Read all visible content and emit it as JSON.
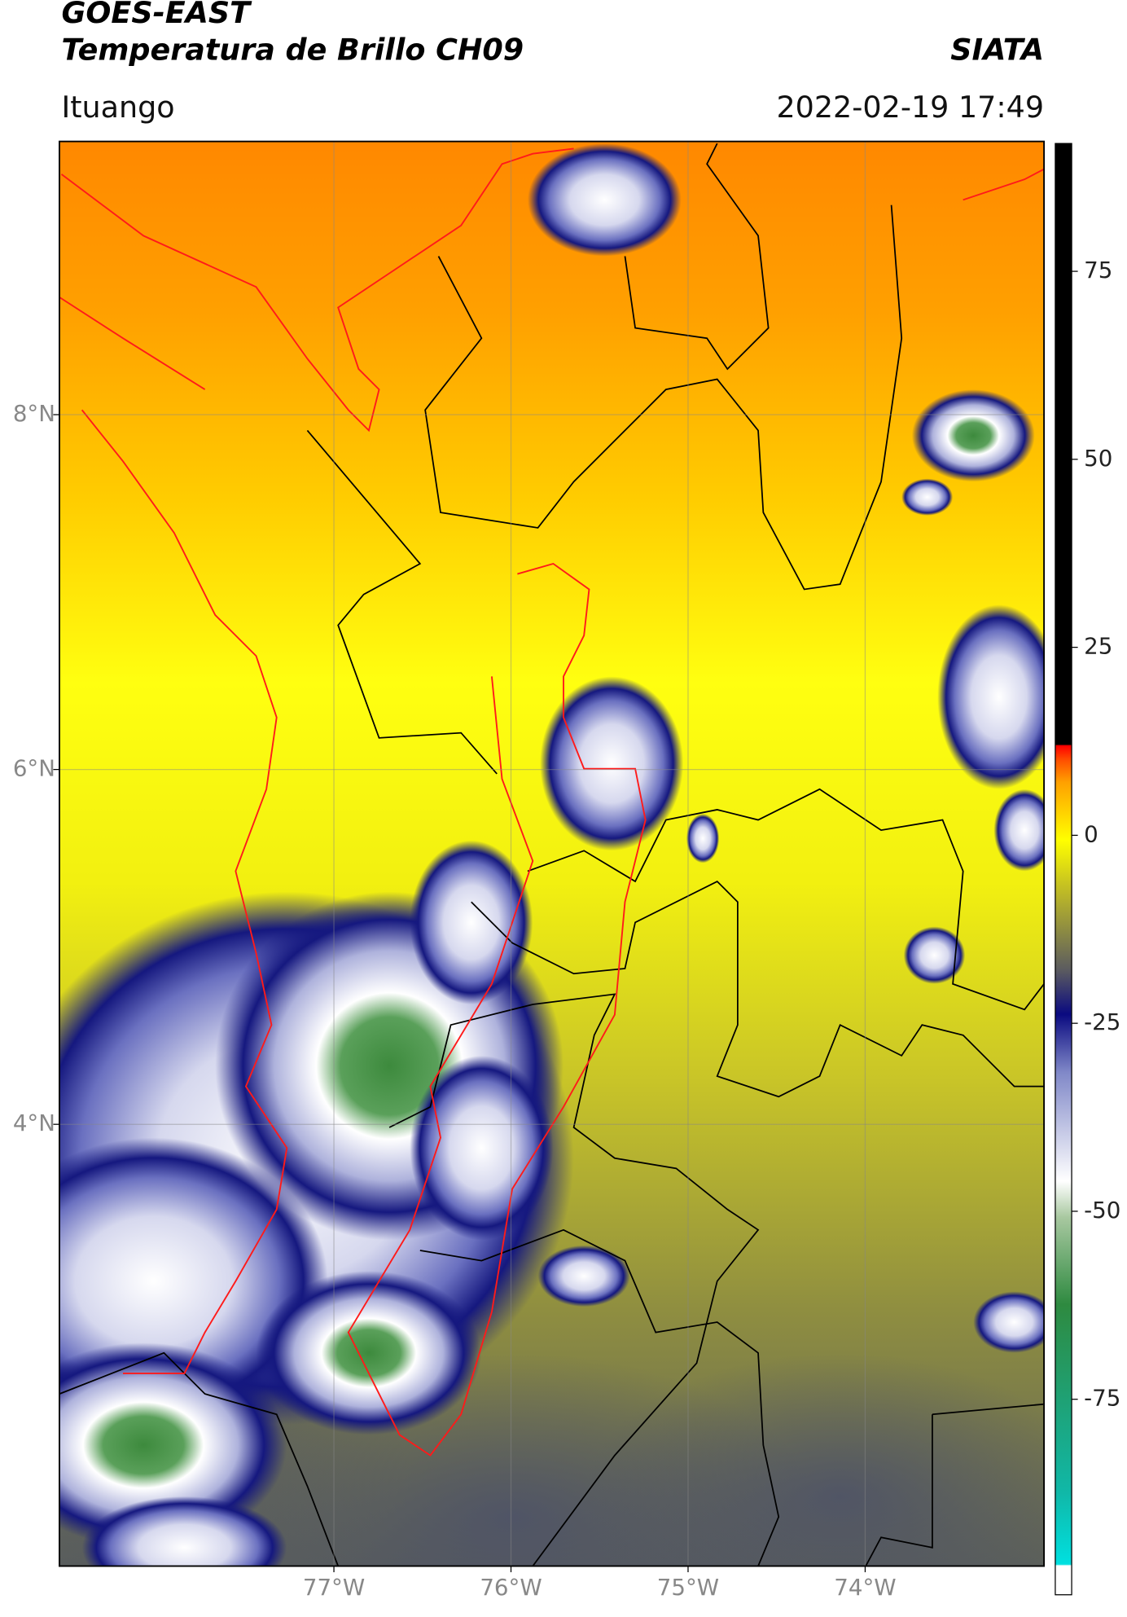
{
  "header": {
    "title": "GOES-EAST",
    "subtitle": "Temperatura de Brillo CH09",
    "org": "SIATA",
    "location": "Ituango",
    "datetime": "2022-02-19 17:49"
  },
  "chart_data": {
    "type": "map",
    "xlim": [
      -78.55,
      -72.99
    ],
    "ylim": [
      1.51,
      9.54
    ],
    "xticks": [
      {
        "value": -77,
        "label": "77°W"
      },
      {
        "value": -76,
        "label": "76°W"
      },
      {
        "value": -75,
        "label": "75°W"
      },
      {
        "value": -74,
        "label": "74°W"
      }
    ],
    "yticks": [
      {
        "value": 8,
        "label": "8°N"
      },
      {
        "value": 6,
        "label": "6°N"
      },
      {
        "value": 4,
        "label": "4°N"
      }
    ],
    "grid": true,
    "colorbar": {
      "lim": [
        -101,
        92
      ],
      "ticks": [
        75,
        50,
        25,
        0,
        -25,
        -50,
        -75
      ]
    }
  }
}
